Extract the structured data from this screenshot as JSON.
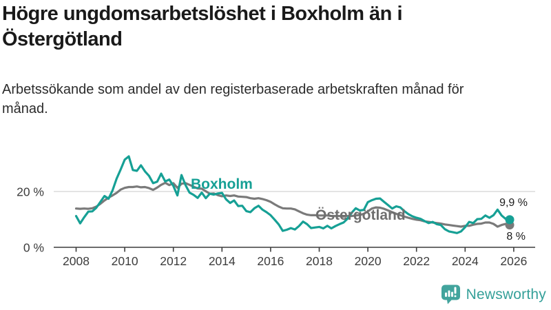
{
  "title": "Högre ungdomsarbetslöshet i Boxholm än i Östergötland",
  "subtitle": "Arbetssökande som andel av den registerbaserade arbetskraften månad för månad.",
  "branding": {
    "name": "Newsworthy",
    "icon": "newsworthy-speech-bubble-bar-chart-icon",
    "bubble_color": "#42a49d",
    "text_color": "#35a099"
  },
  "chart_data": {
    "type": "line",
    "title": "Högre ungdomsarbetslöshet i Boxholm än i Östergötland",
    "subtitle": "Arbetssökande som andel av den registerbaserade arbetskraften månad för månad.",
    "unit": "%",
    "x_start_year": 2008,
    "x_step_months": 2,
    "xlim": [
      2007.1,
      2026.9
    ],
    "ylim": [
      0,
      36
    ],
    "grid": "horizontal gridline at 20% only",
    "legend_position": "inline labels on lines, end-value labels at right",
    "axis_color": "#3c3c3c",
    "gridline_color": "#dcdcdc",
    "x_axis_ticks": [
      "2008",
      "2010",
      "2012",
      "2014",
      "2016",
      "2018",
      "2020",
      "2022",
      "2024",
      "2026"
    ],
    "y_axis_ticks": [
      {
        "value": 0,
        "label": "0 %"
      },
      {
        "value": 20,
        "label": "20 %"
      }
    ],
    "series": [
      {
        "name": "Boxholm",
        "color": "#16a095",
        "end_label": "9,9 %",
        "end_value": 9.9,
        "values": [
          11.2,
          8.6,
          10.8,
          12.8,
          12.9,
          14.2,
          16.3,
          18.4,
          17.4,
          20.4,
          24.6,
          27.9,
          31.4,
          32.6,
          27.7,
          27.4,
          29.4,
          27.2,
          25.6,
          23.0,
          23.5,
          26.4,
          23.6,
          24.3,
          22.0,
          18.6,
          25.9,
          22.3,
          19.6,
          18.8,
          17.7,
          19.6,
          17.6,
          19.2,
          18.9,
          19.3,
          19.5,
          17.2,
          15.9,
          16.8,
          14.8,
          14.9,
          13.0,
          12.6,
          14.0,
          14.9,
          13.5,
          12.6,
          11.5,
          9.9,
          8.2,
          5.9,
          6.3,
          6.9,
          6.4,
          7.6,
          9.2,
          8.3,
          6.9,
          7.1,
          7.3,
          6.8,
          7.7,
          6.8,
          7.6,
          8.3,
          8.9,
          10.3,
          12.4,
          14.0,
          13.2,
          13.4,
          16.2,
          16.9,
          17.4,
          17.5,
          16.3,
          15.1,
          13.9,
          14.7,
          14.3,
          13.0,
          11.9,
          11.1,
          10.6,
          10.2,
          9.4,
          8.7,
          9.1,
          8.3,
          8.0,
          6.5,
          5.7,
          5.4,
          5.1,
          5.7,
          7.2,
          9.1,
          8.7,
          10.1,
          10.2,
          11.4,
          10.6,
          11.5,
          13.5,
          11.4,
          10.2,
          9.9
        ]
      },
      {
        "name": "Östergötland",
        "color": "#7a7a7a",
        "end_label": "8 %",
        "end_value": 8.0,
        "values": [
          13.9,
          13.8,
          13.9,
          13.8,
          14.0,
          14.6,
          15.6,
          16.8,
          17.8,
          18.6,
          19.5,
          20.7,
          21.3,
          21.6,
          21.6,
          21.8,
          21.5,
          21.6,
          21.2,
          20.6,
          21.4,
          22.4,
          23.1,
          22.3,
          23.0,
          21.3,
          22.8,
          23.0,
          22.4,
          21.7,
          21.1,
          21.0,
          20.1,
          19.2,
          19.3,
          18.7,
          18.3,
          18.6,
          18.4,
          18.6,
          18.2,
          18.1,
          18.0,
          17.6,
          17.4,
          17.6,
          17.3,
          16.9,
          16.3,
          15.4,
          14.6,
          14.0,
          13.9,
          13.9,
          13.6,
          12.9,
          12.2,
          11.7,
          11.5,
          11.5,
          11.4,
          11.4,
          11.4,
          11.2,
          11.2,
          11.2,
          11.0,
          11.2,
          11.2,
          11.4,
          11.6,
          12.0,
          12.9,
          13.9,
          14.3,
          14.2,
          13.8,
          13.2,
          12.6,
          12.0,
          11.5,
          11.0,
          10.6,
          10.2,
          9.9,
          9.7,
          9.3,
          9.1,
          8.9,
          8.7,
          8.5,
          8.2,
          8.0,
          7.8,
          7.6,
          7.4,
          7.7,
          7.7,
          8.1,
          8.4,
          8.5,
          8.9,
          8.9,
          8.4,
          7.4,
          8.0,
          8.4,
          8.0
        ]
      }
    ]
  }
}
